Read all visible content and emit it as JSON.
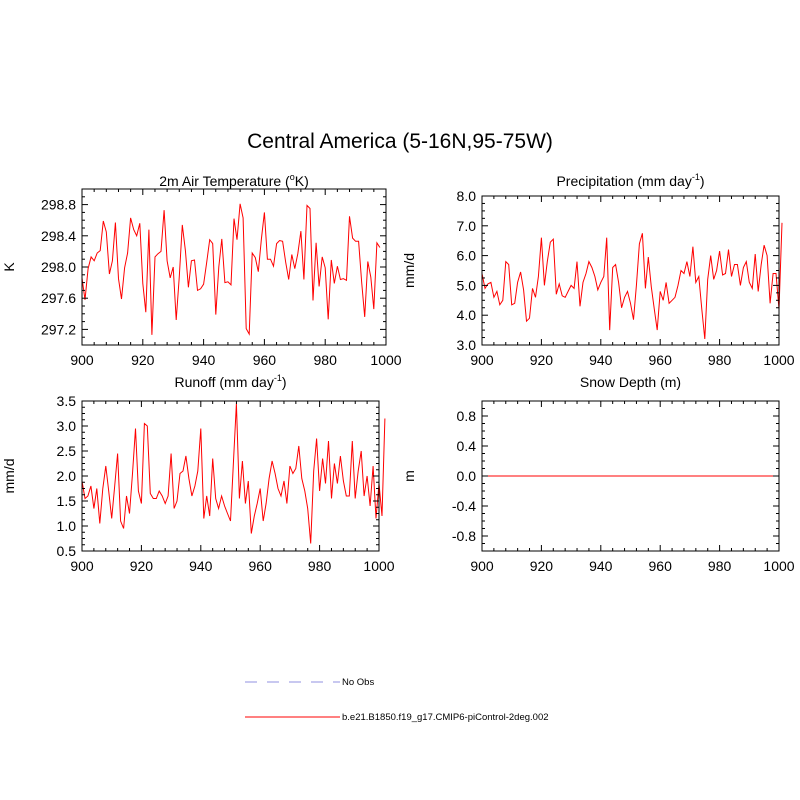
{
  "page": {
    "title": "Central America (5-16N,95-75W)"
  },
  "legend": {
    "items": [
      {
        "label": "No Obs",
        "color": "#9090e0",
        "style": "dashed"
      },
      {
        "label": "b.e21.B1850.f19_g17.CMIP6-piControl-2deg.002",
        "color": "#ff0000",
        "style": "solid"
      }
    ]
  },
  "chart_data": [
    {
      "type": "line",
      "title": "2m Air Temperature (",
      "title_sup": "o",
      "title_suffix": "K)",
      "ylabel": "K",
      "xlabel": "",
      "xlim": [
        900,
        1000
      ],
      "ylim": [
        297.0,
        299.0
      ],
      "xticks": [
        900,
        920,
        940,
        960,
        980,
        1000
      ],
      "yticks": [
        297.2,
        297.6,
        298.0,
        298.4,
        298.8
      ],
      "ytick_labels": [
        "297.2",
        "297.6",
        "298.0",
        "298.4",
        "298.8"
      ],
      "x_start": 900,
      "color": "#ff0000",
      "series": [
        {
          "name": "b.e21.B1850.f19_g17.CMIP6-piControl-2deg.002",
          "values": [
            297.86,
            297.58,
            297.98,
            298.13,
            298.08,
            298.18,
            298.21,
            298.59,
            298.45,
            297.91,
            298.08,
            298.57,
            297.85,
            297.59,
            297.99,
            298.18,
            298.63,
            298.48,
            298.4,
            298.56,
            297.79,
            297.42,
            298.48,
            297.13,
            298.13,
            298.17,
            298.2,
            298.73,
            298.08,
            297.86,
            298.0,
            297.32,
            297.88,
            298.54,
            298.21,
            297.74,
            298.08,
            298.09,
            297.7,
            297.72,
            297.78,
            298.05,
            298.35,
            298.3,
            297.39,
            298.0,
            298.36,
            297.8,
            297.81,
            297.77,
            298.62,
            298.35,
            298.81,
            298.63,
            297.21,
            297.14,
            298.18,
            298.12,
            297.94,
            298.36,
            298.7,
            298.1,
            298.1,
            298.01,
            298.3,
            298.34,
            298.33,
            298.06,
            297.84,
            298.16,
            297.98,
            298.17,
            298.46,
            297.84,
            298.79,
            298.75,
            297.57,
            298.31,
            297.75,
            298.13,
            297.99,
            297.33,
            298.09,
            297.79,
            298.01,
            297.84,
            297.85,
            297.83,
            298.65,
            298.37,
            298.33,
            298.33,
            297.8,
            297.36,
            298.07,
            297.87,
            297.46,
            298.31,
            298.25
          ]
        }
      ]
    },
    {
      "type": "line",
      "title": "Precipitation (mm day",
      "title_sup": "-1",
      "title_suffix": ")",
      "ylabel": "mm/d",
      "xlabel": "",
      "xlim": [
        900,
        1000
      ],
      "ylim": [
        3.0,
        8.0
      ],
      "xticks": [
        900,
        920,
        940,
        960,
        980,
        1000
      ],
      "yticks": [
        3.0,
        4.0,
        5.0,
        6.0,
        7.0,
        8.0
      ],
      "ytick_labels": [
        "3.0",
        "4.0",
        "5.0",
        "6.0",
        "7.0",
        "8.0"
      ],
      "x_start": 900,
      "color": "#ff0000",
      "series": [
        {
          "name": "b.e21.B1850.f19_g17.CMIP6-piControl-2deg.002",
          "values": [
            5.4,
            4.9,
            5.05,
            5.1,
            4.6,
            4.8,
            4.35,
            4.5,
            5.8,
            5.7,
            4.35,
            4.4,
            5.1,
            5.45,
            4.85,
            3.8,
            3.9,
            4.9,
            4.6,
            5.3,
            6.6,
            5.0,
            5.8,
            6.45,
            6.55,
            4.7,
            5.05,
            4.65,
            4.6,
            4.8,
            5.0,
            4.9,
            5.8,
            4.3,
            5.1,
            5.4,
            5.8,
            5.6,
            5.3,
            4.85,
            5.1,
            5.3,
            6.6,
            3.5,
            5.6,
            5.7,
            5.1,
            4.25,
            4.6,
            4.8,
            4.4,
            3.85,
            5.0,
            6.4,
            6.75,
            4.9,
            5.95,
            4.95,
            4.2,
            3.5,
            4.8,
            4.5,
            5.1,
            4.4,
            4.5,
            4.6,
            5.0,
            5.5,
            5.4,
            5.8,
            5.3,
            6.3,
            5.1,
            5.3,
            4.2,
            3.2,
            5.2,
            6.0,
            5.2,
            5.5,
            6.15,
            5.35,
            5.4,
            6.2,
            5.3,
            5.7,
            5.7,
            5.0,
            5.6,
            5.8,
            5.1,
            4.9,
            6.05,
            4.8,
            5.7,
            6.35,
            6.0,
            4.4,
            5.4,
            5.4,
            4.2,
            7.1
          ]
        }
      ]
    },
    {
      "type": "line",
      "title": "Runoff (mm day",
      "title_sup": "-1",
      "title_suffix": ")",
      "ylabel": "mm/d",
      "xlabel": "",
      "xlim": [
        900,
        1000
      ],
      "ylim": [
        0.5,
        3.5
      ],
      "xticks": [
        900,
        920,
        940,
        960,
        980,
        1000
      ],
      "yticks": [
        0.5,
        1.0,
        1.5,
        2.0,
        2.5,
        3.0,
        3.5
      ],
      "ytick_labels": [
        "0.5",
        "1.0",
        "1.5",
        "2.0",
        "2.5",
        "3.0",
        "3.5"
      ],
      "x_start": 900,
      "color": "#ff0000",
      "series": [
        {
          "name": "b.e21.B1850.f19_g17.CMIP6-piControl-2deg.002",
          "values": [
            1.9,
            1.55,
            1.6,
            1.8,
            1.35,
            1.75,
            1.05,
            1.75,
            2.2,
            1.7,
            1.15,
            1.8,
            2.45,
            1.1,
            0.95,
            1.6,
            1.25,
            2.05,
            2.95,
            1.7,
            1.45,
            3.05,
            3.0,
            1.65,
            1.55,
            1.55,
            1.7,
            1.6,
            1.45,
            1.6,
            2.45,
            1.35,
            1.5,
            2.05,
            2.1,
            2.4,
            1.95,
            1.6,
            1.8,
            2.1,
            2.95,
            1.15,
            1.6,
            1.2,
            2.35,
            1.55,
            1.35,
            1.6,
            1.4,
            1.25,
            1.1,
            2.3,
            3.45,
            1.55,
            2.3,
            1.45,
            1.9,
            0.85,
            1.2,
            1.45,
            1.75,
            1.1,
            1.45,
            1.95,
            2.3,
            2.05,
            1.75,
            1.6,
            1.9,
            1.45,
            2.2,
            2.05,
            2.15,
            2.6,
            1.95,
            1.7,
            1.35,
            0.65,
            2.1,
            2.75,
            1.7,
            2.35,
            1.85,
            2.7,
            1.55,
            2.25,
            1.85,
            2.4,
            1.9,
            1.6,
            1.6,
            2.7,
            1.55,
            2.1,
            2.5,
            1.6,
            2.0,
            1.4,
            2.2,
            1.15,
            1.85,
            1.2,
            3.15
          ]
        }
      ]
    },
    {
      "type": "line",
      "title": "Snow Depth (m)",
      "title_sup": "",
      "title_suffix": "",
      "ylabel": "m",
      "xlabel": "",
      "xlim": [
        900,
        1000
      ],
      "ylim": [
        -1.0,
        1.0
      ],
      "xticks": [
        900,
        920,
        940,
        960,
        980,
        1000
      ],
      "yticks": [
        -0.8,
        -0.4,
        0.0,
        0.4,
        0.8
      ],
      "ytick_labels": [
        "-0.8",
        "-0.4",
        "0.0",
        "0.4",
        "0.8"
      ],
      "x_start": 900,
      "color": "#ff0000",
      "series": [
        {
          "name": "b.e21.B1850.f19_g17.CMIP6-piControl-2deg.002",
          "values": [
            0,
            0,
            0,
            0,
            0,
            0,
            0,
            0,
            0,
            0,
            0,
            0,
            0,
            0,
            0,
            0,
            0,
            0,
            0,
            0,
            0,
            0,
            0,
            0,
            0,
            0,
            0,
            0,
            0,
            0,
            0,
            0,
            0,
            0,
            0,
            0,
            0,
            0,
            0,
            0,
            0,
            0,
            0,
            0,
            0,
            0,
            0,
            0,
            0,
            0,
            0,
            0,
            0,
            0,
            0,
            0,
            0,
            0,
            0,
            0,
            0,
            0,
            0,
            0,
            0,
            0,
            0,
            0,
            0,
            0,
            0,
            0,
            0,
            0,
            0,
            0,
            0,
            0,
            0,
            0,
            0,
            0,
            0,
            0,
            0,
            0,
            0,
            0,
            0,
            0,
            0,
            0,
            0,
            0,
            0,
            0,
            0,
            0,
            0
          ]
        }
      ]
    }
  ]
}
